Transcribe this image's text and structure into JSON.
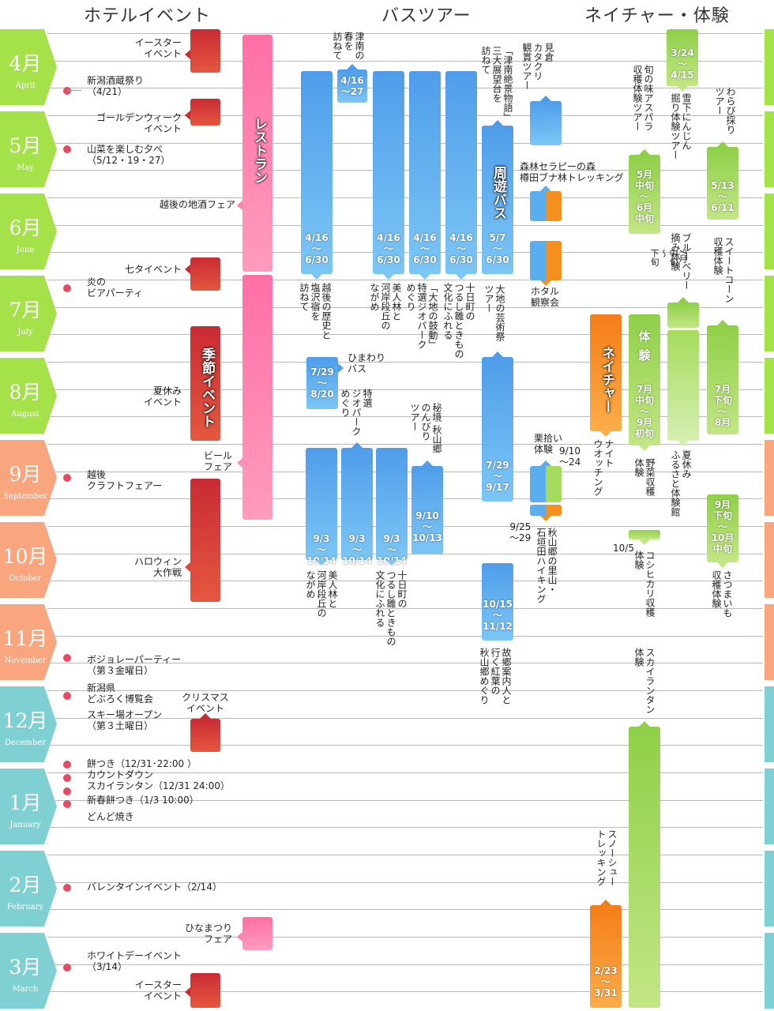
{
  "headers": {
    "hotel": "ホテルイベント",
    "bus": "バスツアー",
    "nature": "ネイチャー・体験"
  },
  "months": [
    {
      "ja": "4月",
      "en": "April"
    },
    {
      "ja": "5月",
      "en": "May"
    },
    {
      "ja": "6月",
      "en": "June"
    },
    {
      "ja": "7月",
      "en": "July"
    },
    {
      "ja": "8月",
      "en": "August"
    },
    {
      "ja": "9月",
      "en": "September"
    },
    {
      "ja": "10月",
      "en": "October"
    },
    {
      "ja": "11月",
      "en": "November"
    },
    {
      "ja": "12月",
      "en": "December"
    },
    {
      "ja": "1月",
      "en": "January"
    },
    {
      "ja": "2月",
      "en": "February"
    },
    {
      "ja": "3月",
      "en": "March"
    }
  ],
  "colors": {
    "spring": "#a5e24a",
    "autumn": "#f9a57e",
    "winter": "#7fd0d3",
    "red": "#d23c3a",
    "pink": "#ff7aa8",
    "blue": "#5aaeee",
    "green": "#a6dc5d",
    "orange": "#f5901e"
  },
  "hotel": {
    "easter1": "イースター\nイベント",
    "sake_fest": "新潟酒蔵祭り\n（4/21）",
    "golden_week": "ゴールデンウィーク\nイベント",
    "sansai": "山菜を楽しむ夕べ\n（5/12・19・27）",
    "jizake": "越後の地酒フェア",
    "tanabata": "七タイベント",
    "beer_party": "炎の\nビアパーティ",
    "summer": "夏休み\nイベント",
    "beer_fair": "ビール\nフェア",
    "craft": "越後\nクラフトフェアー",
    "halloween": "ハロウィン\n大作戦",
    "beaujolais": "ボジョレーパーティー\n（第３金曜日）",
    "doburoku": "新潟県\nどぶろく博覧会",
    "ski_open": "スキー場オープン\n（第３土曜日）",
    "christmas": "クリスマス\nイベント",
    "mochi": "餅つき（12/31･22:00 ）",
    "countdown": "カウントダウン",
    "sky_lantern": "スカイランタン（12/31 24:00）",
    "new_mochi": "新春餅つき（1/3 10:00）",
    "dondo": "どんど焼き",
    "valentine": "バレンタインイベント（2/14）",
    "hinamatsuri": "ひなまつり\nフェア",
    "white_day": "ホワイトデーイベント\n（3/14）",
    "easter2": "イースター\nイベント",
    "restaurant": "レストラン",
    "seasonal": "季節イベント"
  },
  "bus": {
    "tsunan_title": "津南の\n春を\n訪ねて",
    "tsunan_dates": "4/16\n～27",
    "b1_dates": "4/16\n～\n6/30",
    "b1_title": "越後の歴史と\n塩沢宿を\n訪ねて",
    "b2_dates": "4/16\n～\n6/30",
    "b2_title": "美人林と\n河岸段丘の\nながめ",
    "b3_dates": "4/16\n～\n6/30",
    "b3_title": "「大地の鼓動」\n特選ジオパーク\nめぐり",
    "b4_dates": "4/16\n～\n6/30",
    "b4_title": "十日町の\nつるし雛ときもの\n文化にふれる",
    "tsunan_view_title": "「津南絶景物語」\n三大展望台を\n訪ねて",
    "circ_label": "周遊バス",
    "circ_dates": "5/7\n～\n6/30",
    "daichi_title": "大地の芸術祭\nツアー",
    "himawari_title": "ひまわり\nバス",
    "himawari_dates": "7/29\n～\n8/20",
    "geo2_title": "特選\nジオパーク\nめぐり",
    "hikyo_title": "秘境 秋山郷\nのんびり\nツアー",
    "a1_dates": "9/3\n～\n10/14",
    "a2_dates": "9/3\n～\n10/14",
    "a3_dates": "9/3\n～\n10/14",
    "a4_dates": "9/10\n～\n10/13",
    "daichi_dates": "7/29\n～\n9/17",
    "a1_title": "美人林と\n河岸段丘の\nながめ",
    "a3_title": "十日町の\nつるし雛ときもの\n文化にふれる",
    "autumn_dates": "10/15\n～\n11/12",
    "autumn_title": "故郷案内人と\n行く紅葉の\n秋山郷めぐり"
  },
  "nature": {
    "katakuri": "見倉\nカタクリ\n観賞ツアー",
    "forest": "森林セラピーの森\n樽田ブナ林トレッキング",
    "hotaru": "ホタル\n観察会",
    "kuri": "栗拾い\n体験",
    "kuri_dates": "9/10\n～24",
    "satoyama": "秋山郷の里山・\n石垣田ハイキング",
    "satoyama_dates": "9/25\n～29",
    "asparagus_title": "旬の味アスパラ\n収穫体験ツアー",
    "asparagus_dates": "5月\n中旬\n～\n6月\n中旬",
    "snow_carrot_dates": "3/24\n～\n4/15",
    "snow_carrot_title": "雪下にんじん\n掘り体験ツアー",
    "warabi_title": "わらび採り\nツアー",
    "warabi_dates": "5/13\n～\n6/11",
    "blueberry_title": "ブルーベリー\n摘み体験",
    "blueberry_dates": "7月\n中旬\n～\n下旬",
    "corn_title": "スイートコーン\n収穫体験",
    "nature_label": "ネイチャー",
    "night_watch": "ナイト\nウオッチング",
    "taiken": "体\n験",
    "taiken_dates": "7月\n中旬\n～\n9月\n初旬",
    "yasai": "野菜収穫\n体験",
    "furusato": "夏休み\nふるさと体験館",
    "corn_dates": "7月\n下旬\n～\n8月",
    "imo_dates": "9月\n下旬\n～\n10月\n中旬",
    "imo_title": "さつまいも\n収穫体験",
    "koshi_date": "10/5",
    "koshihikari": "コシヒカリ収穫\n体験",
    "sky_lantern": "スカイランタン\n体験",
    "snowshoe": "スノーシュー\nトレッキング",
    "snowshoe_dates": "2/23\n～\n3/31"
  }
}
